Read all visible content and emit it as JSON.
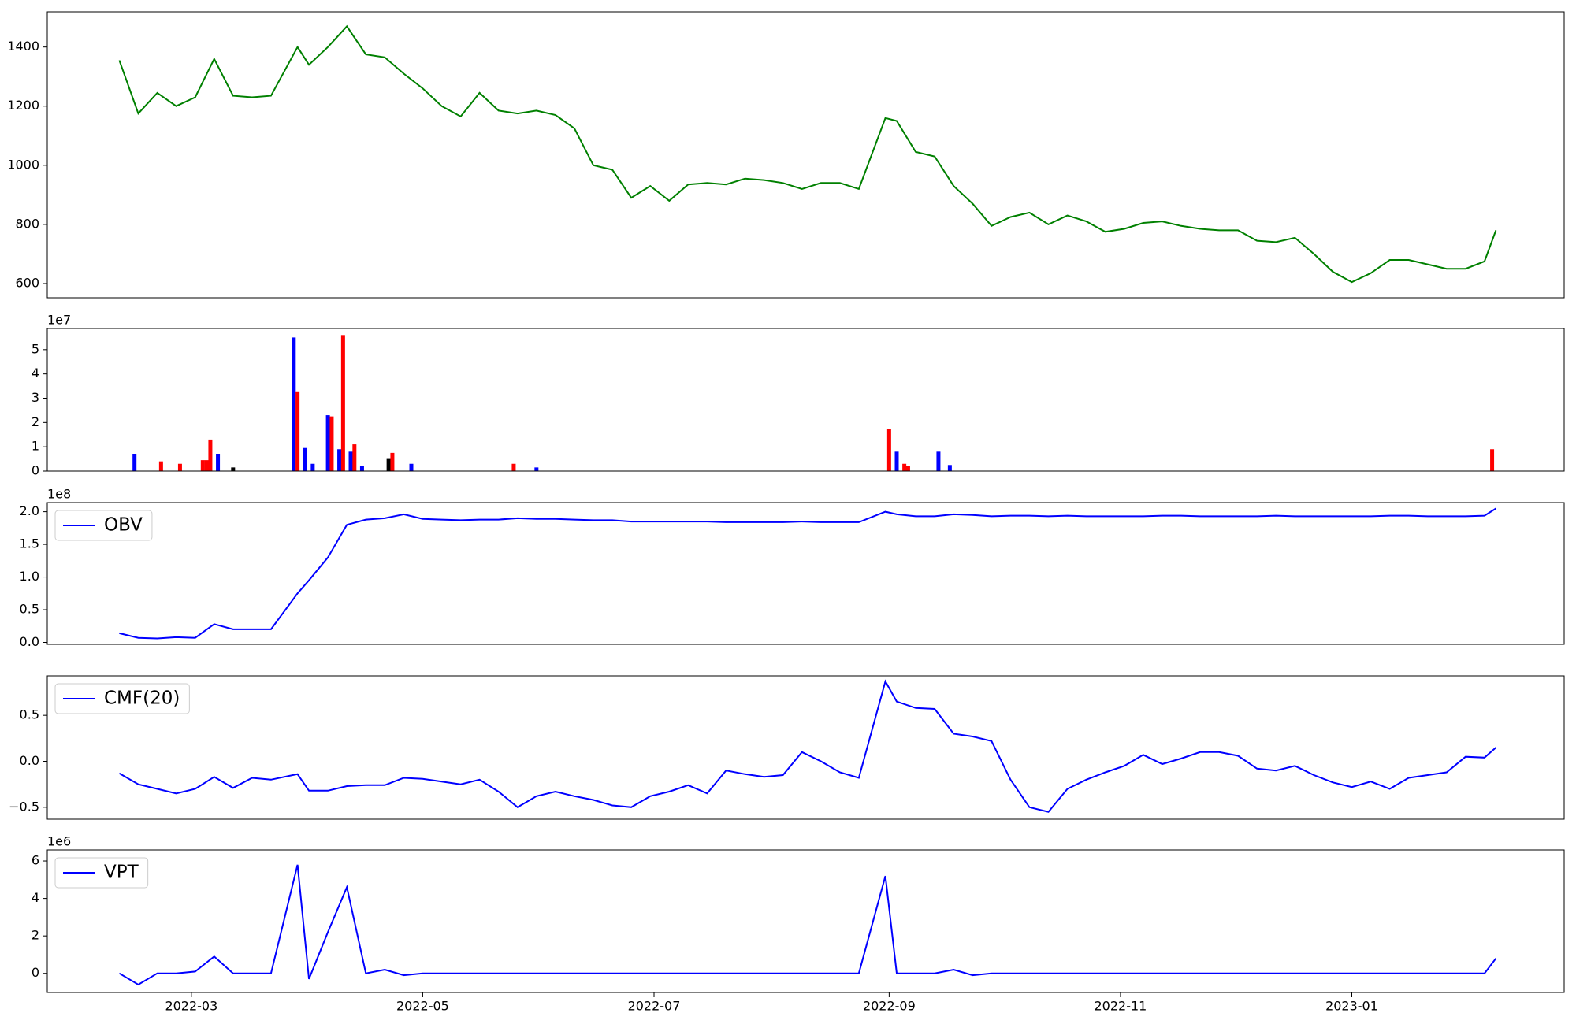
{
  "chart_data": [
    {
      "type": "line",
      "x": [
        "2022-02-10",
        "2022-02-15",
        "2022-02-20",
        "2022-02-25",
        "2022-03-02",
        "2022-03-07",
        "2022-03-12",
        "2022-03-17",
        "2022-03-22",
        "2022-03-29",
        "2022-04-01",
        "2022-04-06",
        "2022-04-11",
        "2022-04-16",
        "2022-04-21",
        "2022-04-26",
        "2022-05-01",
        "2022-05-06",
        "2022-05-11",
        "2022-05-16",
        "2022-05-21",
        "2022-05-26",
        "2022-05-31",
        "2022-06-05",
        "2022-06-10",
        "2022-06-15",
        "2022-06-20",
        "2022-06-25",
        "2022-06-30",
        "2022-07-05",
        "2022-07-10",
        "2022-07-15",
        "2022-07-20",
        "2022-07-25",
        "2022-07-30",
        "2022-08-04",
        "2022-08-09",
        "2022-08-14",
        "2022-08-19",
        "2022-08-24",
        "2022-08-31",
        "2022-09-03",
        "2022-09-08",
        "2022-09-13",
        "2022-09-18",
        "2022-09-23",
        "2022-09-28",
        "2022-10-03",
        "2022-10-08",
        "2022-10-13",
        "2022-10-18",
        "2022-10-23",
        "2022-10-28",
        "2022-11-02",
        "2022-11-07",
        "2022-11-12",
        "2022-11-17",
        "2022-11-22",
        "2022-11-27",
        "2022-12-02",
        "2022-12-07",
        "2022-12-12",
        "2022-12-17",
        "2022-12-22",
        "2022-12-27",
        "2023-01-01",
        "2023-01-06",
        "2023-01-11",
        "2023-01-16",
        "2023-01-21",
        "2023-01-26",
        "2023-01-31",
        "2023-02-05",
        "2023-02-08"
      ],
      "series": [
        {
          "color": "#008000",
          "values": [
            1355,
            1175,
            1245,
            1200,
            1230,
            1360,
            1235,
            1230,
            1235,
            1400,
            1340,
            1400,
            1470,
            1375,
            1365,
            1310,
            1260,
            1200,
            1165,
            1245,
            1185,
            1175,
            1185,
            1170,
            1125,
            1000,
            985,
            890,
            930,
            880,
            935,
            940,
            935,
            955,
            950,
            940,
            920,
            940,
            940,
            920,
            1160,
            1150,
            1045,
            1030,
            930,
            870,
            795,
            825,
            840,
            800,
            830,
            810,
            775,
            785,
            805,
            810,
            795,
            785,
            780,
            780,
            745,
            740,
            755,
            700,
            640,
            605,
            635,
            680,
            680,
            665,
            650,
            650,
            675,
            780
          ]
        }
      ],
      "xlim": [
        "2022-01-22",
        "2023-02-26"
      ],
      "ylim": [
        552,
        1519
      ],
      "yticks": [
        600,
        800,
        1000,
        1200,
        1400
      ]
    },
    {
      "type": "bar",
      "scale_label": "1e7",
      "x": [
        "2022-02-14",
        "2022-02-21",
        "2022-02-26",
        "2022-03-04",
        "2022-03-05",
        "2022-03-06",
        "2022-03-08",
        "2022-03-12",
        "2022-03-28",
        "2022-03-29",
        "2022-03-31",
        "2022-04-02",
        "2022-04-06",
        "2022-04-07",
        "2022-04-09",
        "2022-04-10",
        "2022-04-12",
        "2022-04-13",
        "2022-04-15",
        "2022-04-22",
        "2022-04-23",
        "2022-04-28",
        "2022-05-25",
        "2022-05-31",
        "2022-09-01",
        "2022-09-03",
        "2022-09-05",
        "2022-09-06",
        "2022-09-14",
        "2022-09-17",
        "2023-02-07"
      ],
      "values": [
        0.7,
        0.4,
        0.3,
        0.45,
        0.45,
        1.3,
        0.7,
        0.15,
        5.5,
        3.25,
        0.95,
        0.3,
        2.3,
        2.25,
        0.9,
        5.6,
        0.8,
        1.1,
        0.2,
        0.5,
        0.75,
        0.3,
        0.3,
        0.15,
        1.75,
        0.8,
        0.3,
        0.2,
        0.8,
        0.25,
        0.9
      ],
      "colors": [
        "blue",
        "red",
        "red",
        "red",
        "red",
        "red",
        "blue",
        "black",
        "blue",
        "red",
        "blue",
        "blue",
        "blue",
        "red",
        "blue",
        "red",
        "blue",
        "red",
        "blue",
        "black",
        "red",
        "blue",
        "red",
        "blue",
        "red",
        "blue",
        "red",
        "red",
        "blue",
        "blue",
        "red"
      ],
      "xlim": [
        "2022-01-22",
        "2023-02-26"
      ],
      "ylim": [
        0,
        5.87
      ],
      "yticks": [
        0,
        1,
        2,
        3,
        4,
        5
      ]
    },
    {
      "type": "line",
      "scale_label": "1e8",
      "legend": "upper left",
      "x": [
        "2022-02-10",
        "2022-02-15",
        "2022-02-20",
        "2022-02-25",
        "2022-03-02",
        "2022-03-07",
        "2022-03-12",
        "2022-03-17",
        "2022-03-22",
        "2022-03-29",
        "2022-04-01",
        "2022-04-06",
        "2022-04-11",
        "2022-04-16",
        "2022-04-21",
        "2022-04-26",
        "2022-05-01",
        "2022-05-06",
        "2022-05-11",
        "2022-05-16",
        "2022-05-21",
        "2022-05-26",
        "2022-05-31",
        "2022-06-05",
        "2022-06-10",
        "2022-06-15",
        "2022-06-20",
        "2022-06-25",
        "2022-06-30",
        "2022-07-05",
        "2022-07-10",
        "2022-07-15",
        "2022-07-20",
        "2022-07-25",
        "2022-07-30",
        "2022-08-04",
        "2022-08-09",
        "2022-08-14",
        "2022-08-19",
        "2022-08-24",
        "2022-08-31",
        "2022-09-03",
        "2022-09-08",
        "2022-09-13",
        "2022-09-18",
        "2022-09-23",
        "2022-09-28",
        "2022-10-03",
        "2022-10-08",
        "2022-10-13",
        "2022-10-18",
        "2022-10-23",
        "2022-10-28",
        "2022-11-02",
        "2022-11-07",
        "2022-11-12",
        "2022-11-17",
        "2022-11-22",
        "2022-11-27",
        "2022-12-02",
        "2022-12-07",
        "2022-12-12",
        "2022-12-17",
        "2022-12-22",
        "2022-12-27",
        "2023-01-01",
        "2023-01-06",
        "2023-01-11",
        "2023-01-16",
        "2023-01-21",
        "2023-01-26",
        "2023-01-31",
        "2023-02-05",
        "2023-02-08"
      ],
      "series": [
        {
          "name": "OBV",
          "color": "#0000ff",
          "values": [
            0.14,
            0.07,
            0.06,
            0.08,
            0.07,
            0.28,
            0.2,
            0.2,
            0.2,
            0.75,
            0.95,
            1.3,
            1.8,
            1.88,
            1.9,
            1.96,
            1.89,
            1.88,
            1.87,
            1.88,
            1.88,
            1.9,
            1.89,
            1.89,
            1.88,
            1.87,
            1.87,
            1.85,
            1.85,
            1.85,
            1.85,
            1.85,
            1.84,
            1.84,
            1.84,
            1.84,
            1.85,
            1.84,
            1.84,
            1.84,
            2.0,
            1.96,
            1.93,
            1.93,
            1.96,
            1.95,
            1.93,
            1.94,
            1.94,
            1.93,
            1.94,
            1.93,
            1.93,
            1.93,
            1.93,
            1.94,
            1.94,
            1.93,
            1.93,
            1.93,
            1.93,
            1.94,
            1.93,
            1.93,
            1.93,
            1.93,
            1.93,
            1.94,
            1.94,
            1.93,
            1.93,
            1.93,
            1.94,
            2.05
          ]
        }
      ],
      "xlim": [
        "2022-01-22",
        "2023-02-26"
      ],
      "ylim": [
        -0.03,
        2.14
      ],
      "yticks": [
        {
          "value": 0,
          "label": "0.0"
        },
        0.5,
        {
          "value": 1,
          "label": "1.0"
        },
        1.5,
        {
          "value": 2,
          "label": "2.0"
        }
      ]
    },
    {
      "type": "line",
      "legend": "upper left",
      "x": [
        "2022-02-10",
        "2022-02-15",
        "2022-02-20",
        "2022-02-25",
        "2022-03-02",
        "2022-03-07",
        "2022-03-12",
        "2022-03-17",
        "2022-03-22",
        "2022-03-29",
        "2022-04-01",
        "2022-04-06",
        "2022-04-11",
        "2022-04-16",
        "2022-04-21",
        "2022-04-26",
        "2022-05-01",
        "2022-05-06",
        "2022-05-11",
        "2022-05-16",
        "2022-05-21",
        "2022-05-26",
        "2022-05-31",
        "2022-06-05",
        "2022-06-10",
        "2022-06-15",
        "2022-06-20",
        "2022-06-25",
        "2022-06-30",
        "2022-07-05",
        "2022-07-10",
        "2022-07-15",
        "2022-07-20",
        "2022-07-25",
        "2022-07-30",
        "2022-08-04",
        "2022-08-09",
        "2022-08-14",
        "2022-08-19",
        "2022-08-24",
        "2022-08-31",
        "2022-09-03",
        "2022-09-08",
        "2022-09-13",
        "2022-09-18",
        "2022-09-23",
        "2022-09-28",
        "2022-10-03",
        "2022-10-08",
        "2022-10-13",
        "2022-10-18",
        "2022-10-23",
        "2022-10-28",
        "2022-11-02",
        "2022-11-07",
        "2022-11-12",
        "2022-11-17",
        "2022-11-22",
        "2022-11-27",
        "2022-12-02",
        "2022-12-07",
        "2022-12-12",
        "2022-12-17",
        "2022-12-22",
        "2022-12-27",
        "2023-01-01",
        "2023-01-06",
        "2023-01-11",
        "2023-01-16",
        "2023-01-21",
        "2023-01-26",
        "2023-01-31",
        "2023-02-05",
        "2023-02-08"
      ],
      "series": [
        {
          "name": "CMF(20)",
          "color": "#0000ff",
          "values": [
            -0.13,
            -0.25,
            -0.3,
            -0.35,
            -0.3,
            -0.17,
            -0.29,
            -0.18,
            -0.2,
            -0.14,
            -0.32,
            -0.32,
            -0.27,
            -0.26,
            -0.26,
            -0.18,
            -0.19,
            -0.22,
            -0.25,
            -0.2,
            -0.33,
            -0.5,
            -0.38,
            -0.33,
            -0.38,
            -0.42,
            -0.48,
            -0.5,
            -0.38,
            -0.33,
            -0.26,
            -0.35,
            -0.1,
            -0.14,
            -0.17,
            -0.15,
            0.1,
            0.0,
            -0.12,
            -0.18,
            0.87,
            0.65,
            0.58,
            0.57,
            0.3,
            0.27,
            0.22,
            -0.2,
            -0.5,
            -0.55,
            -0.3,
            -0.2,
            -0.12,
            -0.05,
            0.07,
            -0.03,
            0.03,
            0.1,
            0.1,
            0.06,
            -0.08,
            -0.1,
            -0.05,
            -0.15,
            -0.23,
            -0.28,
            -0.22,
            -0.3,
            -0.18,
            -0.15,
            -0.12,
            0.05,
            0.04,
            0.15
          ]
        }
      ],
      "xlim": [
        "2022-01-22",
        "2023-02-26"
      ],
      "ylim": [
        -0.63,
        0.93
      ],
      "yticks": [
        {
          "value": -0.5,
          "label": "−0.5"
        },
        {
          "value": 0,
          "label": "0.0"
        },
        0.5
      ]
    },
    {
      "type": "line",
      "scale_label": "1e6",
      "legend": "upper left",
      "x": [
        "2022-02-10",
        "2022-02-15",
        "2022-02-20",
        "2022-02-25",
        "2022-03-02",
        "2022-03-07",
        "2022-03-12",
        "2022-03-17",
        "2022-03-22",
        "2022-03-29",
        "2022-04-01",
        "2022-04-06",
        "2022-04-11",
        "2022-04-16",
        "2022-04-21",
        "2022-04-26",
        "2022-05-01",
        "2022-05-06",
        "2022-05-11",
        "2022-05-16",
        "2022-05-21",
        "2022-05-26",
        "2022-05-31",
        "2022-06-05",
        "2022-06-10",
        "2022-06-15",
        "2022-06-20",
        "2022-06-25",
        "2022-06-30",
        "2022-07-05",
        "2022-07-10",
        "2022-07-15",
        "2022-07-20",
        "2022-07-25",
        "2022-07-30",
        "2022-08-04",
        "2022-08-09",
        "2022-08-14",
        "2022-08-19",
        "2022-08-24",
        "2022-08-31",
        "2022-09-03",
        "2022-09-08",
        "2022-09-13",
        "2022-09-18",
        "2022-09-23",
        "2022-09-28",
        "2022-10-03",
        "2022-10-08",
        "2022-10-13",
        "2022-10-18",
        "2022-10-23",
        "2022-10-28",
        "2022-11-02",
        "2022-11-07",
        "2022-11-12",
        "2022-11-17",
        "2022-11-22",
        "2022-11-27",
        "2022-12-02",
        "2022-12-07",
        "2022-12-12",
        "2022-12-17",
        "2022-12-22",
        "2022-12-27",
        "2023-01-01",
        "2023-01-06",
        "2023-01-11",
        "2023-01-16",
        "2023-01-21",
        "2023-01-26",
        "2023-01-31",
        "2023-02-05",
        "2023-02-08"
      ],
      "series": [
        {
          "name": "VPT",
          "color": "#0000ff",
          "values": [
            0,
            -0.6,
            0,
            0,
            0.1,
            0.9,
            0,
            0,
            0,
            5.8,
            -0.3,
            2.2,
            4.6,
            0,
            0.2,
            -0.1,
            0,
            0,
            0,
            0,
            0,
            0,
            0,
            0,
            0,
            0,
            0,
            0,
            0,
            0,
            0,
            0,
            0,
            0,
            0,
            0,
            0,
            0,
            0,
            0,
            5.2,
            0,
            0,
            0,
            0.2,
            -0.1,
            0,
            0,
            0,
            0,
            0,
            0,
            0,
            0,
            0,
            0,
            0,
            0,
            0,
            0,
            0,
            0,
            0,
            0,
            0,
            0,
            0,
            0,
            0,
            0,
            0,
            0,
            0,
            0.8
          ]
        }
      ],
      "xlim": [
        "2022-01-22",
        "2023-02-26"
      ],
      "ylim": [
        -1.02,
        6.59
      ],
      "yticks": [
        0,
        2,
        4,
        6
      ],
      "xticks": [
        {
          "value": "2022-03-01",
          "label": "2022-03"
        },
        {
          "value": "2022-05-01",
          "label": "2022-05"
        },
        {
          "value": "2022-07-01",
          "label": "2022-07"
        },
        {
          "value": "2022-09-01",
          "label": "2022-09"
        },
        {
          "value": "2022-11-01",
          "label": "2022-11"
        },
        {
          "value": "2023-01-01",
          "label": "2023-01"
        }
      ]
    }
  ]
}
